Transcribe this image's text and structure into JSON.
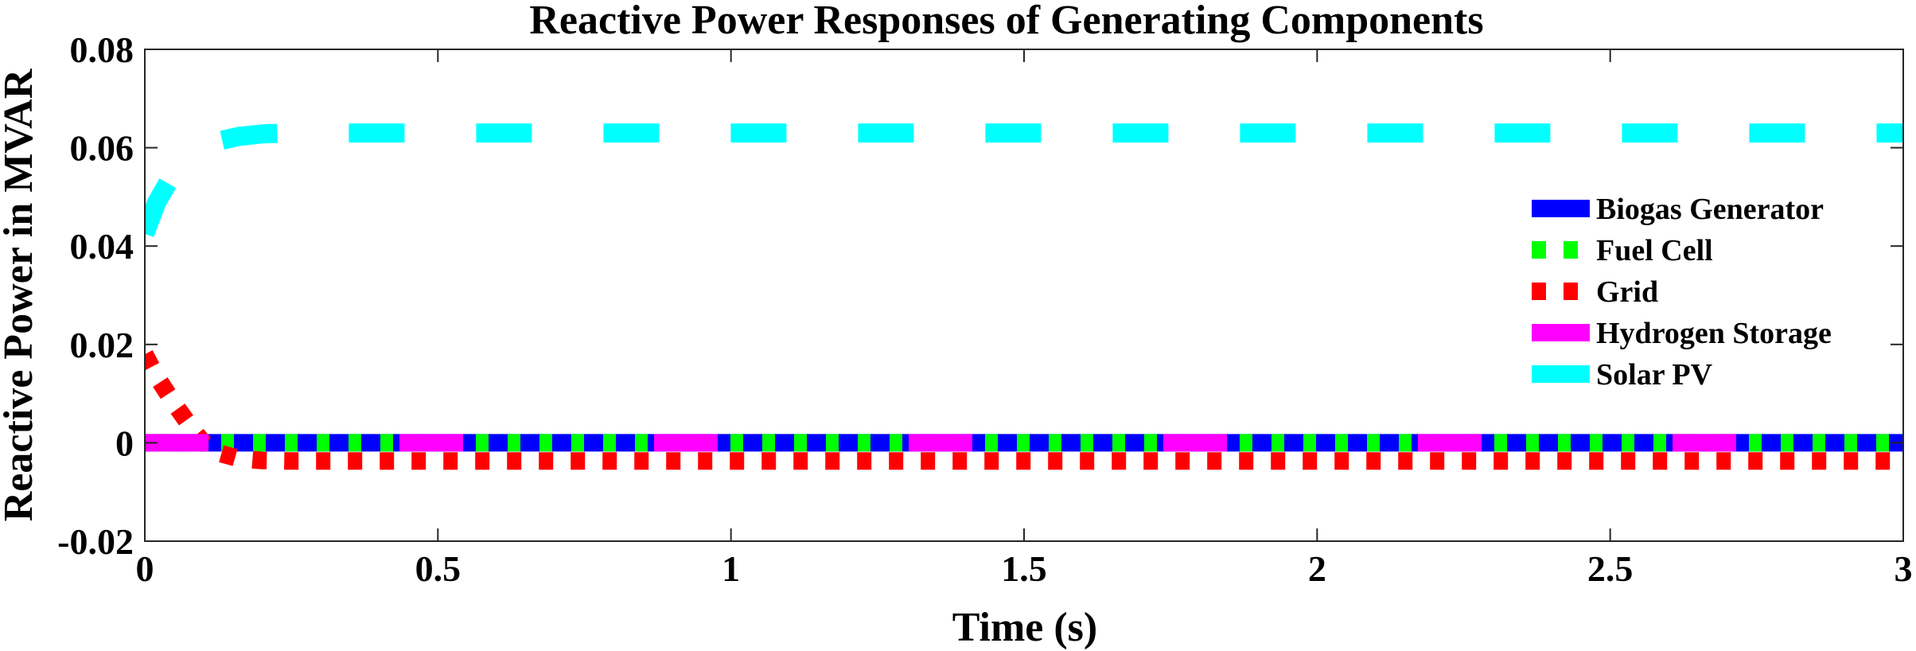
{
  "chart_data": {
    "type": "line",
    "title": "Reactive Power Responses of Generating Components",
    "xlabel": "Time (s)",
    "ylabel": "Reactive Power in MVAR",
    "xlim": [
      0,
      3
    ],
    "ylim": [
      -0.02,
      0.08
    ],
    "xticks": [
      0,
      0.5,
      1,
      1.5,
      2,
      2.5,
      3
    ],
    "xtick_labels": [
      "0",
      "0.5",
      "1",
      "1.5",
      "2",
      "2.5",
      "3"
    ],
    "yticks": [
      -0.02,
      0,
      0.02,
      0.04,
      0.06,
      0.08
    ],
    "ytick_labels": [
      "-0.02",
      "0",
      "0.02",
      "0.04",
      "0.06",
      "0.08"
    ],
    "grid": false,
    "legend_position": "right",
    "series": [
      {
        "name": "Biogas Generator",
        "color": "#0000FF",
        "style": "solid",
        "x": [
          0,
          3
        ],
        "y": [
          0,
          0
        ]
      },
      {
        "name": "Fuel Cell",
        "color": "#00FF00",
        "style": "dotted",
        "x": [
          0,
          3
        ],
        "y": [
          0,
          0
        ]
      },
      {
        "name": "Grid",
        "color": "#FF0000",
        "style": "dotted",
        "x": [
          0,
          0.02,
          0.05,
          0.08,
          0.1,
          0.13,
          0.16,
          0.2,
          0.25,
          0.3,
          3
        ],
        "y": [
          0.018,
          0.0135,
          0.008,
          0.003,
          0.0,
          -0.0022,
          -0.0032,
          -0.0036,
          -0.0037,
          -0.0037,
          -0.0037
        ]
      },
      {
        "name": "Hydrogen Storage",
        "color": "#FF00FF",
        "style": "solid",
        "x": [
          0,
          3
        ],
        "y": [
          0,
          0
        ]
      },
      {
        "name": "Solar PV",
        "color": "#00FFFF",
        "style": "dashed",
        "x": [
          0,
          0.02,
          0.04,
          0.06,
          0.09,
          0.12,
          0.16,
          0.2,
          0.25,
          0.3,
          3
        ],
        "y": [
          0.0425,
          0.0488,
          0.053,
          0.0565,
          0.0595,
          0.0612,
          0.0623,
          0.0628,
          0.063,
          0.063,
          0.063
        ]
      }
    ]
  }
}
